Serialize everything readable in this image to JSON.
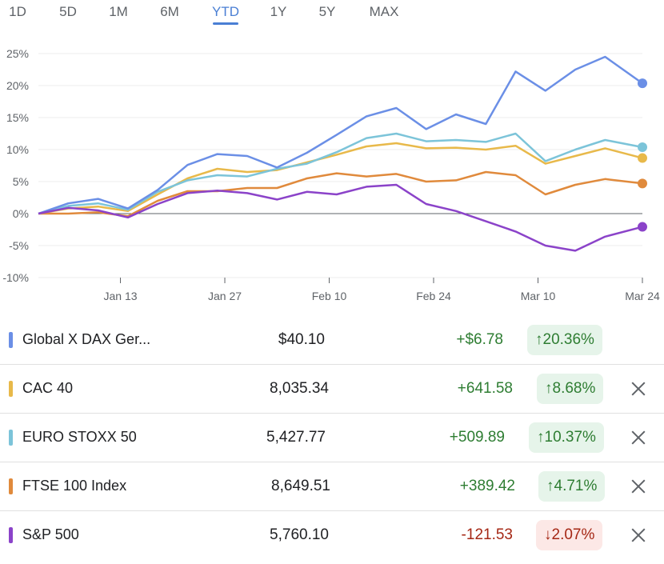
{
  "range_tabs": [
    {
      "label": "1D"
    },
    {
      "label": "5D"
    },
    {
      "label": "1M"
    },
    {
      "label": "6M"
    },
    {
      "label": "YTD",
      "active": true
    },
    {
      "label": "1Y"
    },
    {
      "label": "5Y"
    },
    {
      "label": "MAX"
    }
  ],
  "chart_data": {
    "type": "line",
    "ylim": [
      -10,
      25
    ],
    "y_ticks": [
      "25%",
      "20%",
      "15%",
      "10%",
      "5%",
      "0%",
      "-5%",
      "-10%"
    ],
    "x_ticks": [
      "Jan 13",
      "Jan 27",
      "Feb 10",
      "Feb 24",
      "Mar 10",
      "Mar 24"
    ],
    "grid": true,
    "series": [
      {
        "name": "Global X DAX Ger...",
        "color": "#6b8fe6",
        "x": [
          "2025-01-02",
          "2025-01-06",
          "2025-01-10",
          "2025-01-14",
          "2025-01-18",
          "2025-01-22",
          "2025-01-26",
          "2025-01-30",
          "2025-02-03",
          "2025-02-07",
          "2025-02-11",
          "2025-02-15",
          "2025-02-19",
          "2025-02-23",
          "2025-02-27",
          "2025-03-03",
          "2025-03-07",
          "2025-03-11",
          "2025-03-15",
          "2025-03-19",
          "2025-03-24"
        ],
        "y": [
          0,
          1.6,
          2.3,
          0.8,
          3.7,
          7.6,
          9.3,
          9.0,
          7.2,
          9.5,
          12.3,
          15.2,
          16.5,
          13.2,
          15.5,
          14.0,
          22.2,
          19.2,
          22.5,
          24.5,
          20.36
        ]
      },
      {
        "name": "CAC 40",
        "color": "#e8b94a",
        "x": [
          "2025-01-02",
          "2025-01-06",
          "2025-01-10",
          "2025-01-14",
          "2025-01-18",
          "2025-01-22",
          "2025-01-26",
          "2025-01-30",
          "2025-02-03",
          "2025-02-07",
          "2025-02-11",
          "2025-02-15",
          "2025-02-19",
          "2025-02-23",
          "2025-02-27",
          "2025-03-03",
          "2025-03-07",
          "2025-03-11",
          "2025-03-15",
          "2025-03-19",
          "2025-03-24"
        ],
        "y": [
          0,
          0.8,
          1.1,
          0.4,
          3.0,
          5.5,
          7.0,
          6.5,
          6.8,
          8.0,
          9.2,
          10.5,
          11.0,
          10.2,
          10.3,
          10.0,
          10.6,
          7.8,
          9.0,
          10.2,
          8.68
        ]
      },
      {
        "name": "EURO STOXX 50",
        "color": "#7cc4d9",
        "x": [
          "2025-01-02",
          "2025-01-06",
          "2025-01-10",
          "2025-01-14",
          "2025-01-18",
          "2025-01-22",
          "2025-01-26",
          "2025-01-30",
          "2025-02-03",
          "2025-02-07",
          "2025-02-11",
          "2025-02-15",
          "2025-02-19",
          "2025-02-23",
          "2025-02-27",
          "2025-03-03",
          "2025-03-07",
          "2025-03-11",
          "2025-03-15",
          "2025-03-19",
          "2025-03-24"
        ],
        "y": [
          0,
          1.2,
          1.6,
          0.6,
          3.4,
          5.2,
          6.0,
          5.8,
          7.0,
          7.8,
          9.6,
          11.8,
          12.5,
          11.3,
          11.5,
          11.2,
          12.5,
          8.2,
          10.0,
          11.5,
          10.37
        ]
      },
      {
        "name": "FTSE 100 Index",
        "color": "#e08a3c",
        "x": [
          "2025-01-02",
          "2025-01-06",
          "2025-01-10",
          "2025-01-14",
          "2025-01-18",
          "2025-01-22",
          "2025-01-26",
          "2025-01-30",
          "2025-02-03",
          "2025-02-07",
          "2025-02-11",
          "2025-02-15",
          "2025-02-19",
          "2025-02-23",
          "2025-02-27",
          "2025-03-03",
          "2025-03-07",
          "2025-03-11",
          "2025-03-15",
          "2025-03-19",
          "2025-03-24"
        ],
        "y": [
          0,
          0.0,
          0.2,
          -0.4,
          2.0,
          3.5,
          3.5,
          4.0,
          4.0,
          5.5,
          6.3,
          5.8,
          6.2,
          5.0,
          5.2,
          6.5,
          6.0,
          3.0,
          4.5,
          5.4,
          4.71
        ]
      },
      {
        "name": "S&P 500",
        "color": "#8b43c9",
        "x": [
          "2025-01-02",
          "2025-01-06",
          "2025-01-10",
          "2025-01-14",
          "2025-01-18",
          "2025-01-22",
          "2025-01-26",
          "2025-01-30",
          "2025-02-03",
          "2025-02-07",
          "2025-02-11",
          "2025-02-15",
          "2025-02-19",
          "2025-02-23",
          "2025-02-27",
          "2025-03-03",
          "2025-03-07",
          "2025-03-11",
          "2025-03-15",
          "2025-03-19",
          "2025-03-24"
        ],
        "y": [
          0,
          0.9,
          0.5,
          -0.6,
          1.5,
          3.2,
          3.6,
          3.2,
          2.2,
          3.4,
          3.0,
          4.2,
          4.5,
          1.5,
          0.4,
          -1.2,
          -2.8,
          -5.0,
          -5.8,
          -3.6,
          -2.07
        ]
      }
    ]
  },
  "rows": [
    {
      "name": "Global X DAX Ger...",
      "color": "#6b8fe6",
      "price": "$40.10",
      "change": "+$6.78",
      "pct": "20.36%",
      "direction": "up",
      "arrow": "↑",
      "removable": false
    },
    {
      "name": "CAC 40",
      "color": "#e8b94a",
      "price": "8,035.34",
      "change": "+641.58",
      "pct": "8.68%",
      "direction": "up",
      "arrow": "↑",
      "removable": true
    },
    {
      "name": "EURO STOXX 50",
      "color": "#7cc4d9",
      "price": "5,427.77",
      "change": "+509.89",
      "pct": "10.37%",
      "direction": "up",
      "arrow": "↑",
      "removable": true
    },
    {
      "name": "FTSE 100 Index",
      "color": "#e08a3c",
      "price": "8,649.51",
      "change": "+389.42",
      "pct": "4.71%",
      "direction": "up",
      "arrow": "↑",
      "removable": true
    },
    {
      "name": "S&P 500",
      "color": "#8b43c9",
      "price": "5,760.10",
      "change": "-121.53",
      "pct": "2.07%",
      "direction": "down",
      "arrow": "↓",
      "removable": true
    }
  ]
}
